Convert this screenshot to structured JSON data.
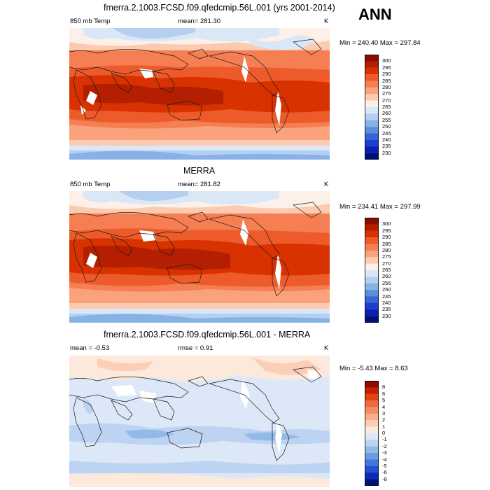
{
  "season": "ANN",
  "panels": [
    {
      "title": "fmerra.2.1003.FCSD.f09.qfedcmip.56L.001 (yrs 2001-2014)",
      "left": "850 mb Temp",
      "center": "mean= 281.30",
      "units": "K",
      "minmax": "Min = 240.40 Max = 297.84",
      "levels": [
        "300",
        "295",
        "290",
        "285",
        "280",
        "275",
        "270",
        "265",
        "260",
        "255",
        "250",
        "245",
        "240",
        "235",
        "230"
      ],
      "colors": [
        "#8b0d00",
        "#b31f00",
        "#d73200",
        "#ed5b2b",
        "#f57e52",
        "#f9a27c",
        "#fccab0",
        "#fdf0e8",
        "#dae7f7",
        "#b5cff0",
        "#88b2e6",
        "#5b8fdc",
        "#3565d6",
        "#1d3fce",
        "#0b20b0",
        "#00107a"
      ]
    },
    {
      "title": "MERRA",
      "left": "850 mb Temp",
      "center": "mean= 281.82",
      "units": "K",
      "minmax": "Min = 234.41 Max = 297.99",
      "levels": [
        "300",
        "295",
        "290",
        "285",
        "280",
        "275",
        "270",
        "265",
        "260",
        "255",
        "250",
        "245",
        "240",
        "235",
        "230"
      ],
      "colors": [
        "#8b0d00",
        "#b31f00",
        "#d73200",
        "#ed5b2b",
        "#f57e52",
        "#f9a27c",
        "#fccab0",
        "#fdf0e8",
        "#dae7f7",
        "#b5cff0",
        "#88b2e6",
        "#5b8fdc",
        "#3565d6",
        "#1d3fce",
        "#0b20b0",
        "#00107a"
      ]
    },
    {
      "title": "fmerra.2.1003.FCSD.f09.qfedcmip.56L.001 - MERRA",
      "left": "mean =  -0.53",
      "center": "rmse =   0.91",
      "units": "K",
      "minmax": "Min =  -5.43 Max =   8.63",
      "levels": [
        "8",
        "6",
        "5",
        "4",
        "3",
        "2",
        "1",
        "0",
        "-1",
        "-2",
        "-3",
        "-4",
        "-5",
        "-6",
        "-8"
      ],
      "colors": [
        "#8b0d00",
        "#c42100",
        "#e04210",
        "#ed6a3c",
        "#f58d64",
        "#f9ae8c",
        "#fbcfb7",
        "#fde9dc",
        "#dce8f7",
        "#bcd3f1",
        "#93b9e8",
        "#6a9be0",
        "#4377d9",
        "#2250cf",
        "#0c2cb5",
        "#00107a"
      ]
    }
  ]
}
